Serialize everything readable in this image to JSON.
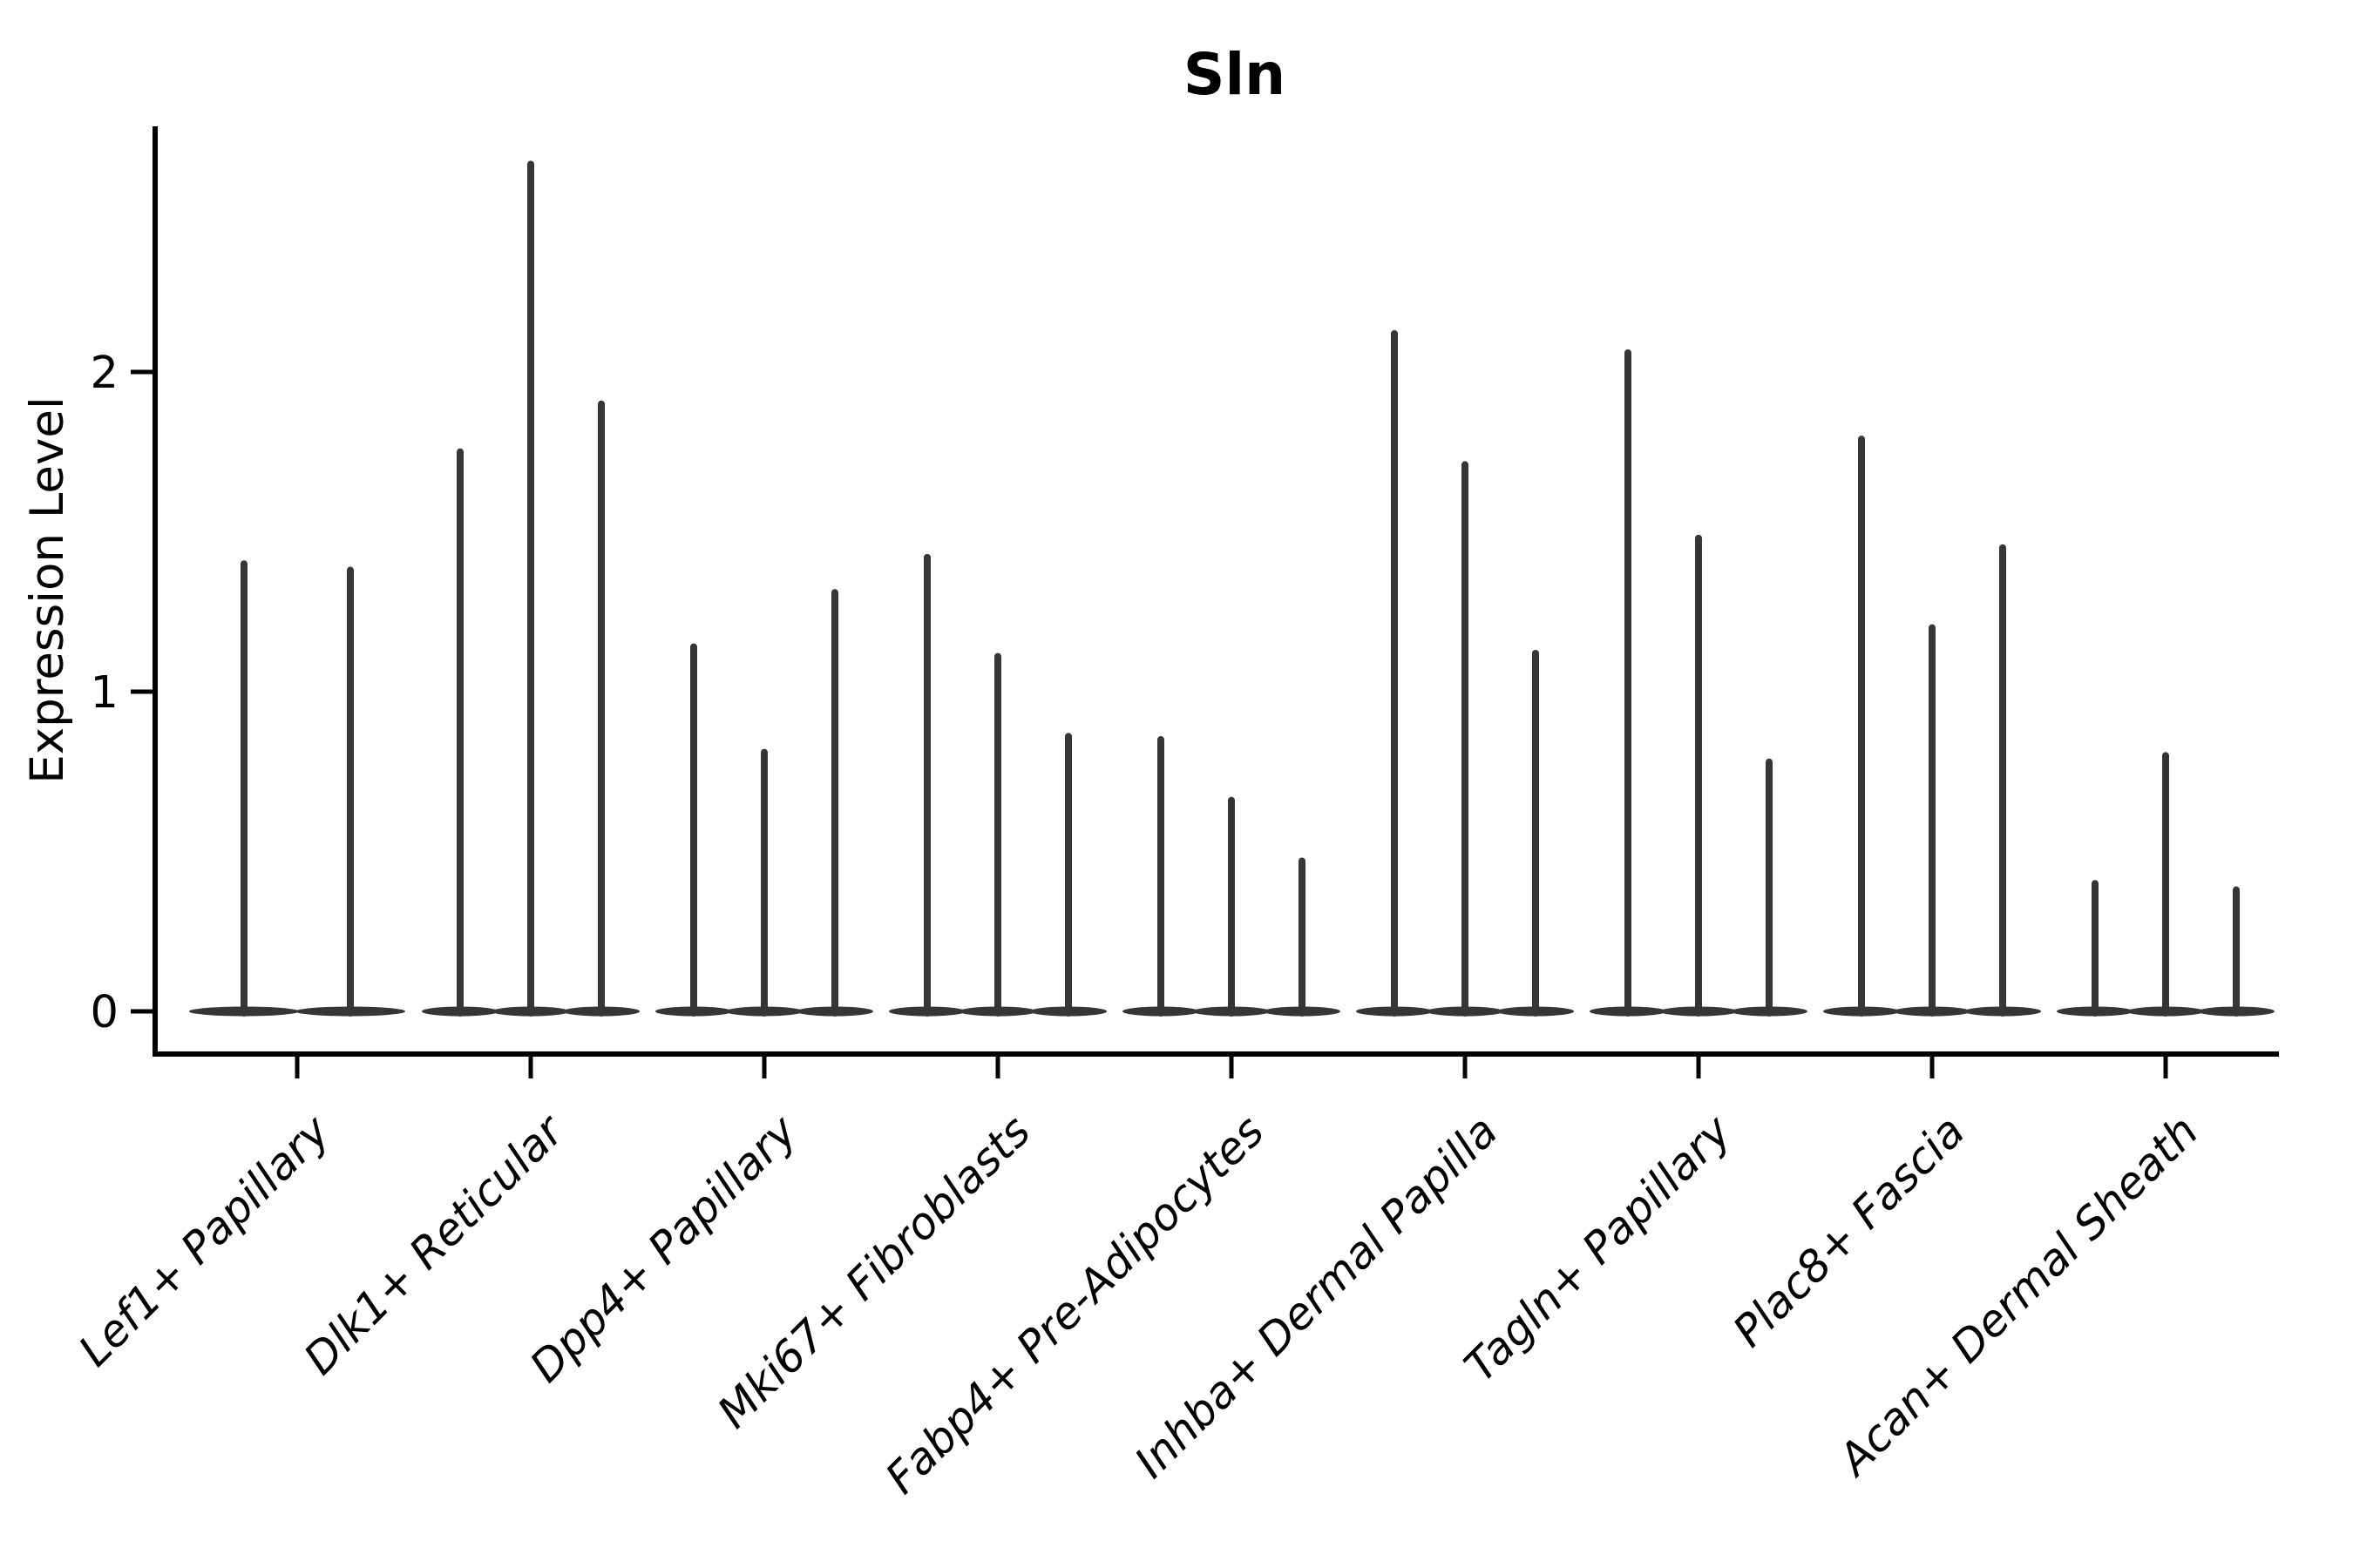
{
  "figure": {
    "background": "#ffffff"
  },
  "chart_data": {
    "type": "violin",
    "title": "Sln",
    "ylabel": "Expression Level",
    "xlabel": "",
    "yticks": [
      "0",
      "1",
      "2"
    ],
    "ylim": [
      -0.13,
      2.77
    ],
    "grid": false,
    "legend": null,
    "note": "Each category shows thin violins (expression mass at 0 with a narrow spike to the max value); spike heights below are the max expression level per violin",
    "categories": [
      "Lef1+ Papillary",
      "Dlk1+ Reticular",
      "Dpp4+ Papillary",
      "Mki67+ Fibroblasts",
      "Fabp4+ Pre-Adipocytes",
      "Inhba+ Dermal Papilla",
      "Tagln+ Papillary",
      "Plac8+ Fascia",
      "Acan+ Dermal Sheath"
    ],
    "groups": [
      {
        "category": "Lef1+ Papillary",
        "spike_max_values": [
          1.4,
          1.38
        ]
      },
      {
        "category": "Dlk1+ Reticular",
        "spike_max_values": [
          1.75,
          2.65,
          1.9
        ]
      },
      {
        "category": "Dpp4+ Papillary",
        "spike_max_values": [
          1.14,
          0.81,
          1.31
        ]
      },
      {
        "category": "Mki67+ Fibroblasts",
        "spike_max_values": [
          1.42,
          1.11,
          0.86
        ]
      },
      {
        "category": "Fabp4+ Pre-Adipocytes",
        "spike_max_values": [
          0.85,
          0.66,
          0.47
        ]
      },
      {
        "category": "Inhba+ Dermal Papilla",
        "spike_max_values": [
          2.12,
          1.71,
          1.12
        ]
      },
      {
        "category": "Tagln+ Papillary",
        "spike_max_values": [
          2.06,
          1.48,
          0.78
        ]
      },
      {
        "category": "Plac8+ Fascia",
        "spike_max_values": [
          1.79,
          1.2,
          1.45
        ]
      },
      {
        "category": "Acan+ Dermal Sheath",
        "spike_max_values": [
          0.4,
          0.8,
          0.38
        ]
      }
    ],
    "violin_color": "#363636",
    "axis_color": "#000000"
  }
}
